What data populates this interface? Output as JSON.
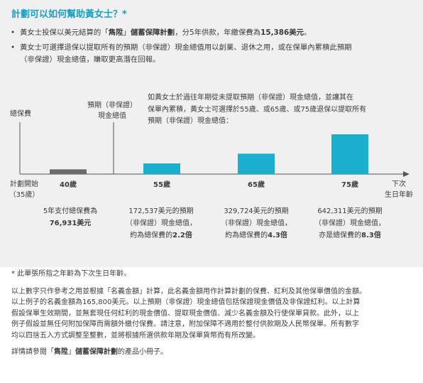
{
  "title": "計劃可以如何幫助黃女士？*",
  "bullets": [
    {
      "pre": "黃女士投保以美元結算的「",
      "bold1": "雋陞",
      "mid": "」",
      "bold2": "儲蓄保障計劃",
      "post": "，分5年供款，年繳保費為",
      "bold3": "15,386美元",
      "end": "。"
    },
    {
      "line1": "黃女士可選擇退保以提取所有的預期（非保證）現金總值用以創業、退休之用，或在保單內累積此預期",
      "line2": "（非保證）現金總值，賺取更高潛在回報。"
    }
  ],
  "chart": {
    "y_label": "總保費",
    "y_label2": "預期（非保證）",
    "y_label2b": "現金總值",
    "annotation": [
      "如黃女士於過往年期從未提取預期（非保證）現金總值，並讓其在",
      "保單內累積，黃女士可選擇於55歲、或65歲、或75歲退保以提取所有",
      "預期（非保證）現金總值："
    ],
    "origin_label": [
      "計劃開始",
      "（35歲）"
    ],
    "x_axis_label": [
      "下次",
      "生日年齡"
    ]
  },
  "chart_data": {
    "type": "bar",
    "categories": [
      "40歲",
      "55歲",
      "65歲",
      "75歲"
    ],
    "values": [
      76931,
      172537,
      329724,
      642311
    ],
    "ylim": [
      0,
      642311
    ],
    "color": "#1ab0cd",
    "first_color": "#6b6b6b"
  },
  "captions": [
    {
      "line1": "5年支付總保費為",
      "line2": "76,931美元"
    },
    {
      "line1": "172,537美元的預期",
      "line2": "（非保證）現金總值，",
      "line3a": "約為總保費的",
      "line3b": "2.2倍"
    },
    {
      "line1": "329,724美元的預期",
      "line2": "（非保證）現金總值，",
      "line3a": "約為總保費的",
      "line3b": "4.3倍"
    },
    {
      "line1": "642,311美元的預期",
      "line2": "（非保證）現金總值，",
      "line3a": "亦是總保費的",
      "line3b": "8.3倍"
    }
  ],
  "footer": {
    "note": "* 此單張所指之年齡為下次生日年齡。",
    "para1": [
      "以上數字只作參考之用並根據「名義金額」計算，此名義金額用作計算計劃的保費、紅利及其他保單價值的金額。",
      "以上例子的名義金額為165,800美元。以上預期（非保證）現金總值包括保證現金價值及非保證紅利。以上計算",
      "假設保單生效期間，並無套現任何紅利的現金價值、提取現金價值、減少名義金額及行使保單貸款。此外，以上",
      "例子假設並無任何附加保障而需額外繳付保費。請注意，附加保障不適用於整付供款期及人民幣保單。所有數字",
      "均以四捨五入方式調整至整數，並將根據所選供款年期及保單貨幣而有所改變。"
    ],
    "para2_pre": "詳情請參閱「",
    "para2_bold": "雋陞",
    "para2_mid": "」",
    "para2_bold2": "儲蓄保障計劃",
    "para2_post": "的產品小冊子。"
  }
}
